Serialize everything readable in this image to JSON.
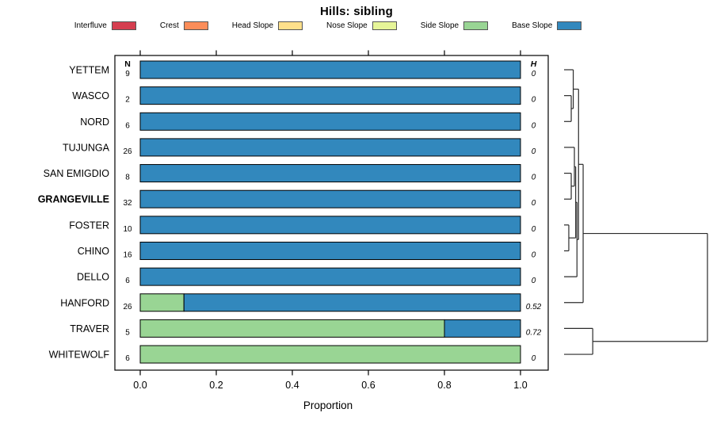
{
  "chart_data": {
    "type": "bar",
    "orientation": "horizontal-stacked",
    "title": "Hills: sibling",
    "xlabel": "Proportion",
    "xlim": [
      0,
      1
    ],
    "axis_ticks": [
      "0.0",
      "0.2",
      "0.4",
      "0.6",
      "0.8",
      "1.0"
    ],
    "grid": false,
    "legend_position": "top",
    "legend": [
      {
        "label": "Interfluve",
        "color": "#D53E4F"
      },
      {
        "label": "Crest",
        "color": "#FC8D59"
      },
      {
        "label": "Head Slope",
        "color": "#FEE08B"
      },
      {
        "label": "Nose Slope",
        "color": "#E6F598"
      },
      {
        "label": "Side Slope",
        "color": "#99D594"
      },
      {
        "label": "Base Slope",
        "color": "#3288BD"
      }
    ],
    "columns": {
      "n_header": "N",
      "h_header": "H"
    },
    "rows": [
      {
        "label": "YETTEM",
        "n": "9",
        "h": "0",
        "bold": false,
        "segments": [
          {
            "category": "Base Slope",
            "value": 1.0
          }
        ]
      },
      {
        "label": "WASCO",
        "n": "2",
        "h": "0",
        "bold": false,
        "segments": [
          {
            "category": "Base Slope",
            "value": 1.0
          }
        ]
      },
      {
        "label": "NORD",
        "n": "6",
        "h": "0",
        "bold": false,
        "segments": [
          {
            "category": "Base Slope",
            "value": 1.0
          }
        ]
      },
      {
        "label": "TUJUNGA",
        "n": "26",
        "h": "0",
        "bold": false,
        "segments": [
          {
            "category": "Base Slope",
            "value": 1.0
          }
        ]
      },
      {
        "label": "SAN EMIGDIO",
        "n": "8",
        "h": "0",
        "bold": false,
        "segments": [
          {
            "category": "Base Slope",
            "value": 1.0
          }
        ]
      },
      {
        "label": "GRANGEVILLE",
        "n": "32",
        "h": "0",
        "bold": true,
        "segments": [
          {
            "category": "Base Slope",
            "value": 1.0
          }
        ]
      },
      {
        "label": "FOSTER",
        "n": "10",
        "h": "0",
        "bold": false,
        "segments": [
          {
            "category": "Base Slope",
            "value": 1.0
          }
        ]
      },
      {
        "label": "CHINO",
        "n": "16",
        "h": "0",
        "bold": false,
        "segments": [
          {
            "category": "Base Slope",
            "value": 1.0
          }
        ]
      },
      {
        "label": "DELLO",
        "n": "6",
        "h": "0",
        "bold": false,
        "segments": [
          {
            "category": "Base Slope",
            "value": 1.0
          }
        ]
      },
      {
        "label": "HANFORD",
        "n": "26",
        "h": "0.52",
        "bold": false,
        "segments": [
          {
            "category": "Side Slope",
            "value": 0.115
          },
          {
            "category": "Base Slope",
            "value": 0.885
          }
        ]
      },
      {
        "label": "TRAVER",
        "n": "5",
        "h": "0.72",
        "bold": false,
        "segments": [
          {
            "category": "Side Slope",
            "value": 0.8
          },
          {
            "category": "Base Slope",
            "value": 0.2
          }
        ]
      },
      {
        "label": "WHITEWOLF",
        "n": "6",
        "h": "0",
        "bold": false,
        "segments": [
          {
            "category": "Side Slope",
            "value": 1.0
          }
        ]
      }
    ],
    "dendrogram": {
      "h": 1,
      "children": [
        {
          "h": 0.133,
          "children": [
            {
              "h": 0.101,
              "children": [
                {
                  "h": 0.064,
                  "children": [
                    {
                      "leaf": "YETTEM"
                    },
                    {
                      "h": 0.05,
                      "children": [
                        {
                          "leaf": "WASCO"
                        },
                        {
                          "leaf": "NORD"
                        }
                      ]
                    }
                  ]
                },
                {
                  "h": 0.09,
                  "children": [
                    {
                      "h": 0.081,
                      "children": [
                        {
                          "h": 0.072,
                          "children": [
                            {
                              "leaf": "TUJUNGA"
                            },
                            {
                              "h": 0.05,
                              "children": [
                                {
                                  "leaf": "SAN EMIGDIO"
                                },
                                {
                                  "leaf": "GRANGEVILLE"
                                }
                              ]
                            }
                          ]
                        },
                        {
                          "h": 0.033,
                          "children": [
                            {
                              "leaf": "FOSTER"
                            },
                            {
                              "leaf": "CHINO"
                            }
                          ]
                        }
                      ]
                    },
                    {
                      "leaf": "DELLO"
                    }
                  ]
                }
              ]
            },
            {
              "leaf": "HANFORD"
            }
          ]
        },
        {
          "h": 0.2,
          "children": [
            {
              "leaf": "TRAVER"
            },
            {
              "leaf": "WHITEWOLF"
            }
          ]
        }
      ]
    }
  }
}
